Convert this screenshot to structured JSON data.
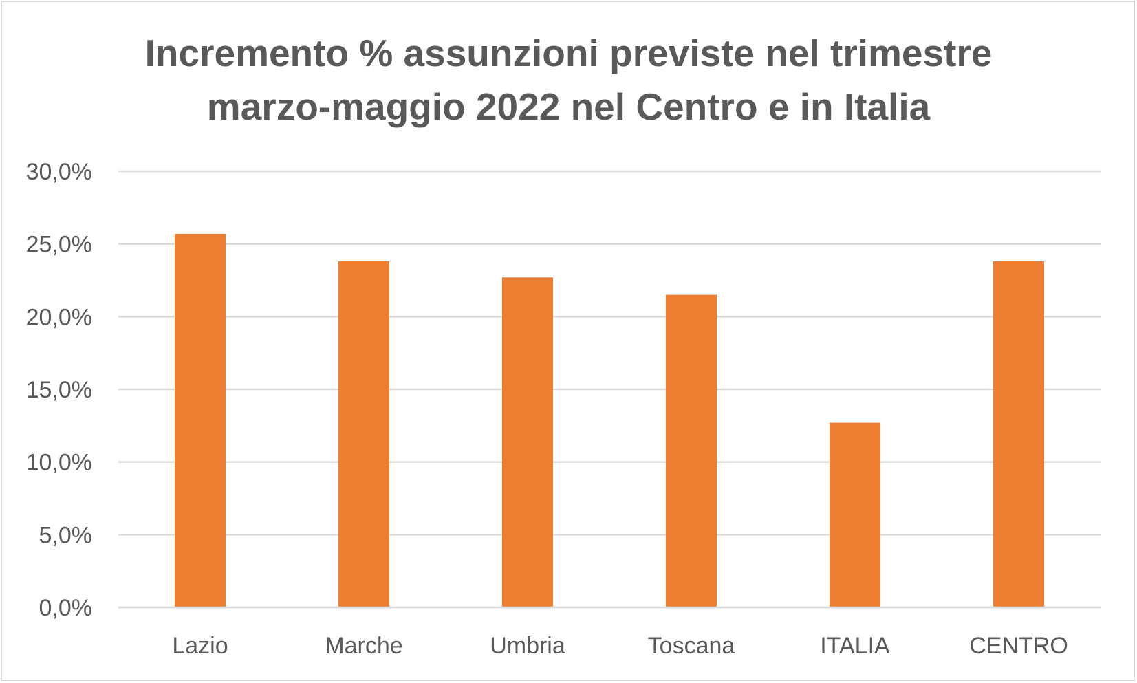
{
  "chart_data": {
    "type": "bar",
    "title_lines": [
      "Incremento % assunzioni previste nel trimestre",
      "marzo-maggio 2022 nel Centro e in Italia"
    ],
    "categories": [
      "Lazio",
      "Marche",
      "Umbria",
      "Toscana",
      "ITALIA",
      "CENTRO"
    ],
    "values": [
      25.7,
      23.8,
      22.7,
      21.5,
      12.7,
      23.8
    ],
    "ylim": [
      0,
      30
    ],
    "yticks": [
      0,
      5,
      10,
      15,
      20,
      25,
      30
    ],
    "ytick_labels": [
      "0,0%",
      "5,0%",
      "10,0%",
      "15,0%",
      "20,0%",
      "25,0%",
      "30,0%"
    ],
    "xlabel": "",
    "ylabel": "",
    "grid": true,
    "legend": "none",
    "bar_color": "#ed7d31",
    "grid_color": "#d9d9d9",
    "text_color": "#595959"
  }
}
